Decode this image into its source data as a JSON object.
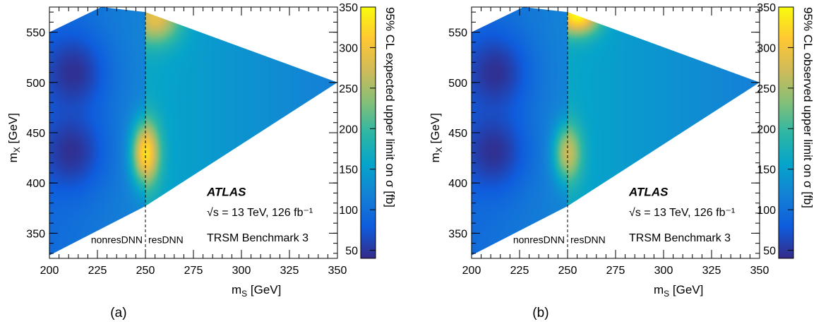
{
  "chart_data": [
    {
      "type": "heatmap",
      "panel_label": "(a)",
      "xlabel": "m_S [GeV]",
      "ylabel": "m_X [GeV]",
      "zlabel": "95% CL expected upper limit on σ [fb]",
      "xlim": [
        200,
        350
      ],
      "ylim": [
        325,
        575
      ],
      "zlim": [
        40,
        350
      ],
      "x_ticks": [
        200,
        225,
        250,
        275,
        300,
        325,
        350
      ],
      "y_ticks": [
        350,
        400,
        450,
        500,
        550
      ],
      "z_ticks": [
        50,
        100,
        150,
        200,
        250,
        300,
        350
      ],
      "colormap": [
        "#352a87",
        "#0f5cdd",
        "#1481d6",
        "#06a4ca",
        "#2eb7a4",
        "#87bf77",
        "#d1bb59",
        "#fec832",
        "#f9fb0e"
      ],
      "boundary": [
        [
          200,
          328
        ],
        [
          250,
          377
        ],
        [
          350,
          500
        ],
        [
          250,
          570
        ],
        [
          227,
          575
        ],
        [
          200,
          550
        ]
      ],
      "divider": {
        "x": 250,
        "left_label": "nonresDNN",
        "right_label": "resDNN"
      },
      "blobs": [
        {
          "x": 212,
          "y": 510,
          "value": 45,
          "sx": 12,
          "sy": 28
        },
        {
          "x": 211,
          "y": 432,
          "value": 45,
          "sx": 12,
          "sy": 28
        },
        {
          "x": 250,
          "y": 430,
          "value": 330,
          "sx": 5,
          "sy": 22
        },
        {
          "x": 255,
          "y": 565,
          "value": 290,
          "sx": 9,
          "sy": 18
        }
      ],
      "annotations": {
        "experiment": "ATLAS",
        "energy": "√s = 13 TeV, 126 fb⁻¹",
        "benchmark": "TRSM Benchmark 3"
      }
    },
    {
      "type": "heatmap",
      "panel_label": "(b)",
      "xlabel": "m_S [GeV]",
      "ylabel": "m_X [GeV]",
      "zlabel": "95% CL observed upper limit on σ [fb]",
      "xlim": [
        200,
        350
      ],
      "ylim": [
        325,
        575
      ],
      "zlim": [
        40,
        350
      ],
      "x_ticks": [
        200,
        225,
        250,
        275,
        300,
        325,
        350
      ],
      "y_ticks": [
        350,
        400,
        450,
        500,
        550
      ],
      "z_ticks": [
        50,
        100,
        150,
        200,
        250,
        300,
        350
      ],
      "colormap": [
        "#352a87",
        "#0f5cdd",
        "#1481d6",
        "#06a4ca",
        "#2eb7a4",
        "#87bf77",
        "#d1bb59",
        "#fec832",
        "#f9fb0e"
      ],
      "boundary": [
        [
          200,
          328
        ],
        [
          250,
          377
        ],
        [
          350,
          500
        ],
        [
          250,
          570
        ],
        [
          227,
          575
        ],
        [
          200,
          550
        ]
      ],
      "divider": {
        "x": 250,
        "left_label": "nonresDNN",
        "right_label": "resDNN"
      },
      "blobs": [
        {
          "x": 212,
          "y": 510,
          "value": 45,
          "sx": 12,
          "sy": 28
        },
        {
          "x": 211,
          "y": 432,
          "value": 45,
          "sx": 12,
          "sy": 28
        },
        {
          "x": 250,
          "y": 430,
          "value": 270,
          "sx": 5,
          "sy": 20
        },
        {
          "x": 255,
          "y": 568,
          "value": 350,
          "sx": 8,
          "sy": 14
        }
      ],
      "annotations": {
        "experiment": "ATLAS",
        "energy": "√s = 13 TeV, 126 fb⁻¹",
        "benchmark": "TRSM Benchmark 3"
      }
    }
  ]
}
